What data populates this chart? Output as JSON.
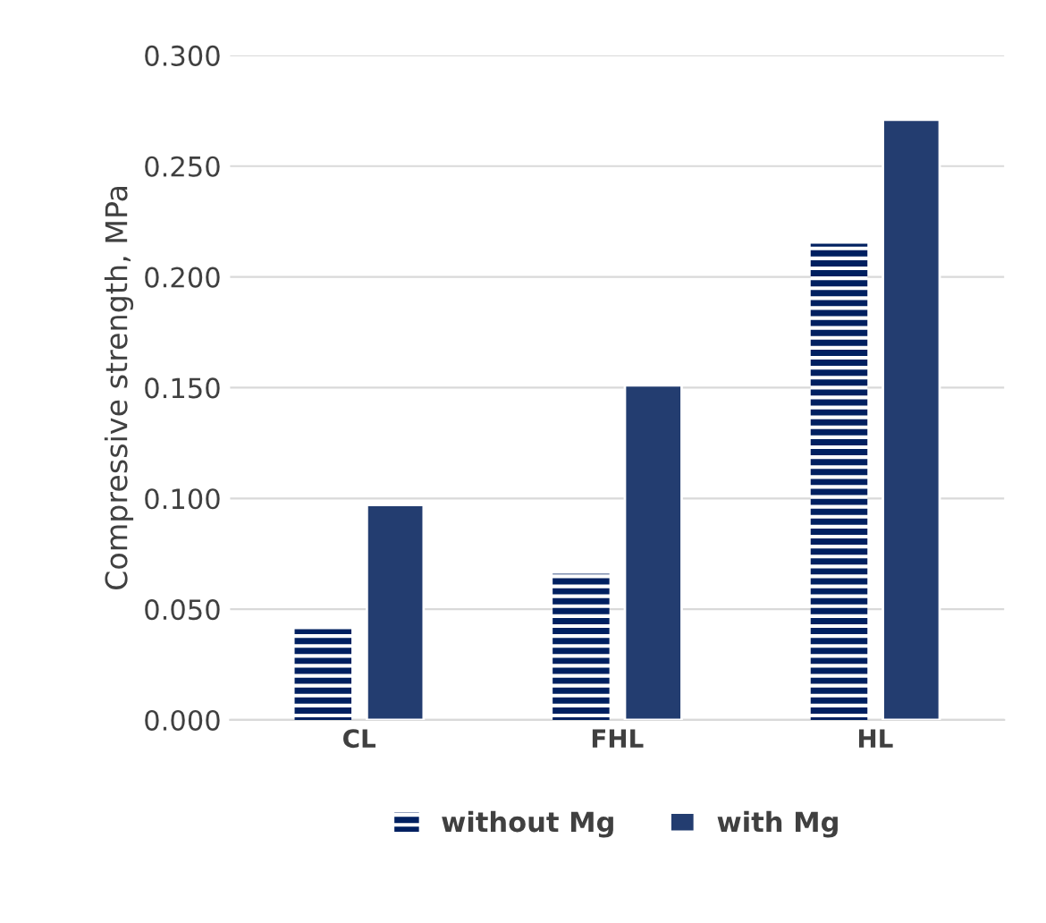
{
  "chart_data": {
    "type": "bar",
    "ylabel": "Compressive strength, MPa",
    "categories": [
      "CL",
      "FHL",
      "HL"
    ],
    "series": [
      {
        "name": "without Mg",
        "color": "#002060",
        "values": [
          0.041,
          0.066,
          0.215
        ]
      },
      {
        "name": "with Mg",
        "color": "#233d70",
        "values": [
          0.097,
          0.151,
          0.271
        ]
      }
    ],
    "ylim": [
      0,
      0.3
    ],
    "yticks": [
      {
        "value": 0,
        "label": "0.000"
      },
      {
        "value": 0.05,
        "label": "0.050"
      },
      {
        "value": 0.1,
        "label": "0.100"
      },
      {
        "value": 0.15,
        "label": "0.150"
      },
      {
        "value": 0.2,
        "label": "0.200"
      },
      {
        "value": 0.25,
        "label": "0.250"
      },
      {
        "value": 0.3,
        "label": "0.300"
      }
    ],
    "grid": "y",
    "legend": "bottom"
  }
}
